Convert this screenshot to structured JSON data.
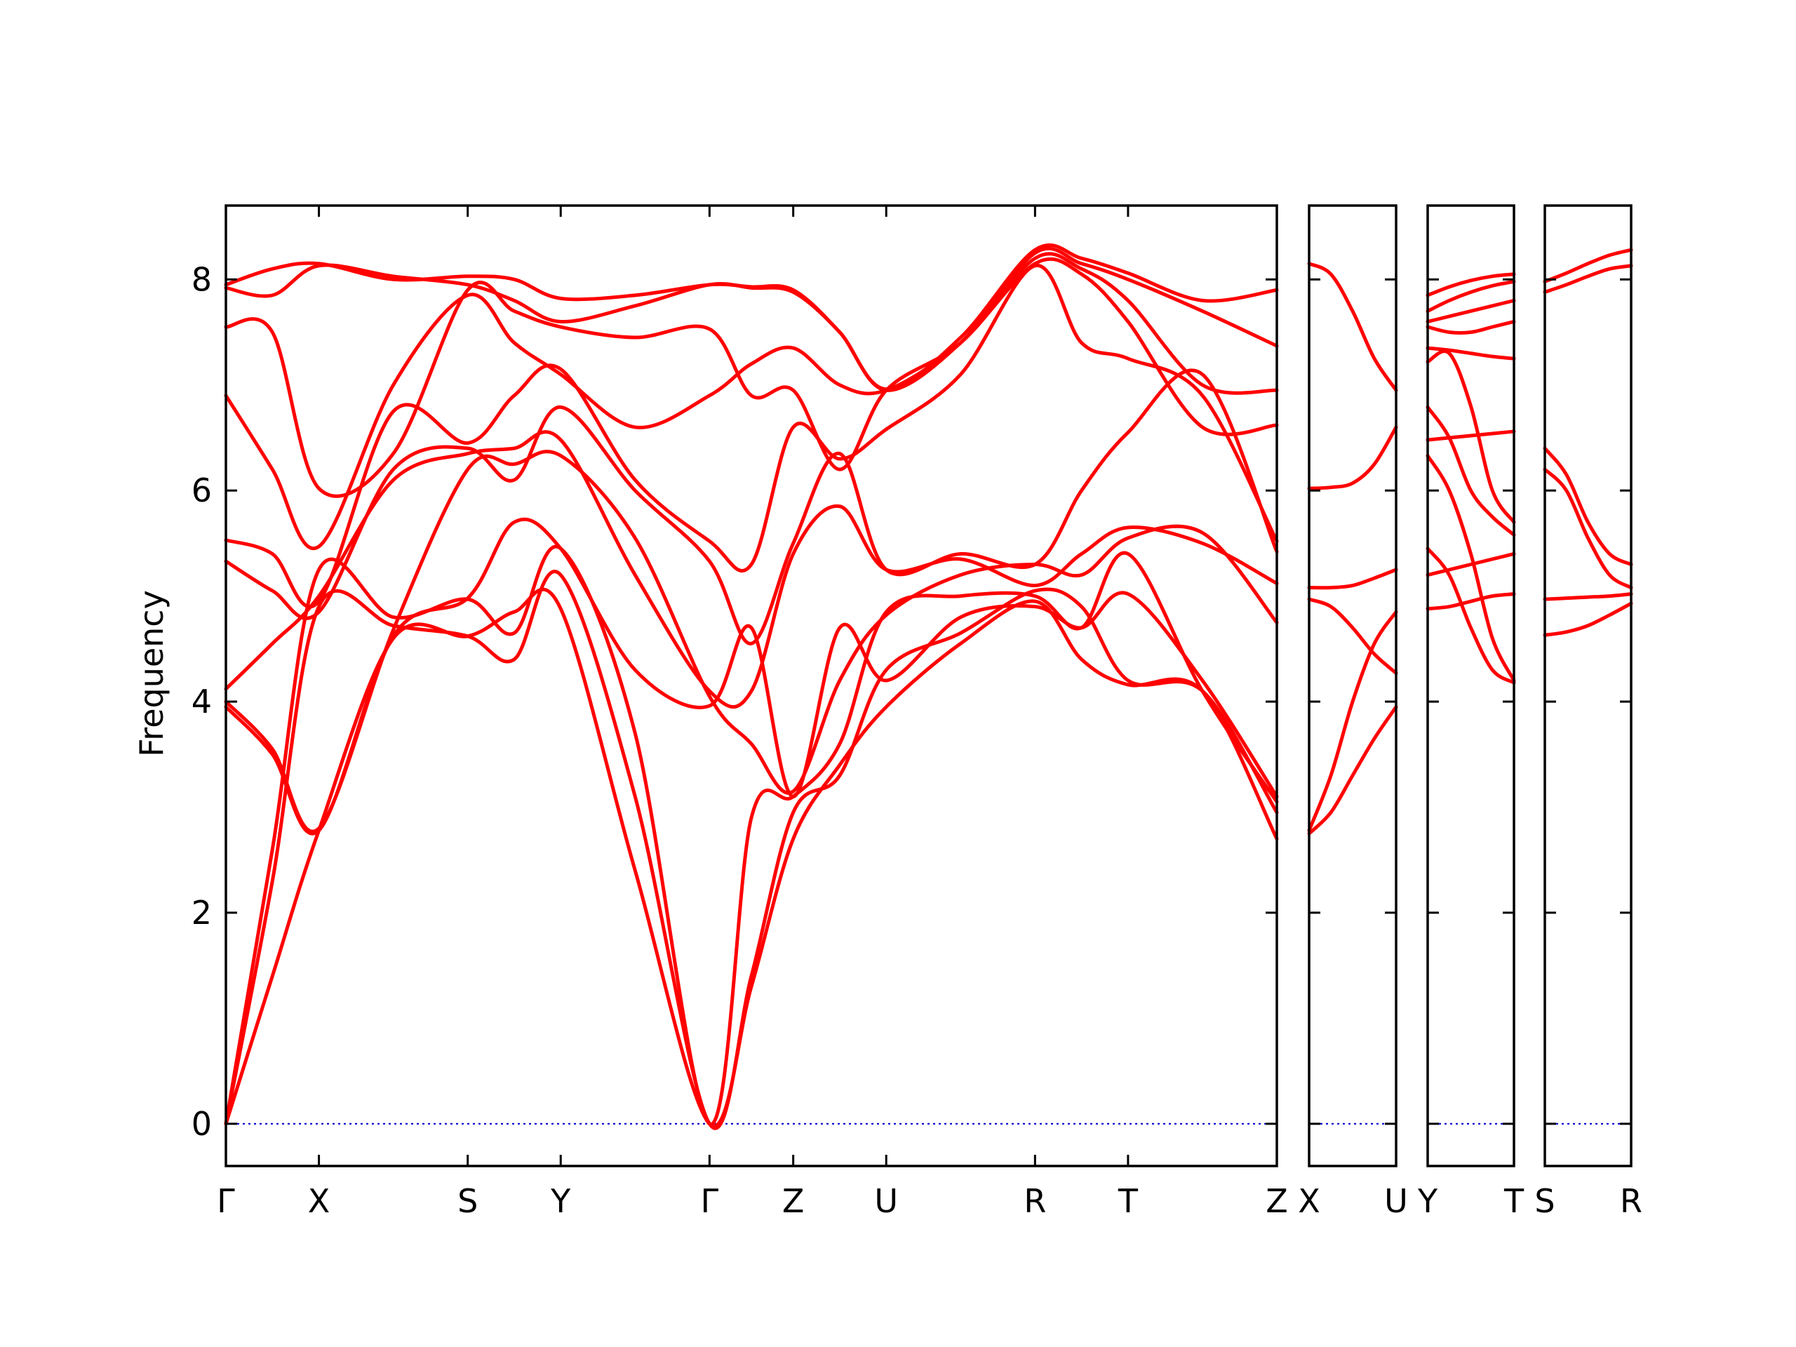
{
  "chart_data": {
    "type": "line",
    "title": "",
    "ylabel": "Frequency",
    "xlabel": "",
    "ylim": [
      -0.4,
      8.7
    ],
    "yticks": [
      0,
      2,
      4,
      6,
      8
    ],
    "ytick_labels": [
      "0",
      "2",
      "4",
      "6",
      "8"
    ],
    "grid": false,
    "legend": "none",
    "colors": {
      "bands": "#ff0000",
      "zero_line": "#0000cc",
      "axes": "#000000"
    },
    "panels": [
      {
        "name": "main",
        "xticks": [
          0,
          1,
          2.6,
          3.6,
          5.2,
          6.1,
          7.1,
          8.7,
          9.7,
          11.3
        ],
        "xtick_labels": [
          "Γ",
          "X",
          "S",
          "Y",
          "Γ",
          "Z",
          "U",
          "R",
          "T",
          "Z"
        ],
        "series": [
          {
            "name": "",
            "x": [
              0,
              0.5,
              1,
              1.8,
              2.6,
              3.1,
              3.6,
              4.4,
              5.2,
              5.65,
              6.1,
              6.6,
              7.1,
              7.9,
              8.7,
              9.2,
              9.7,
              10.5,
              11.3
            ],
            "y": [
              0,
              1.4,
              2.78,
              4.6,
              4.62,
              4.85,
              4.88,
              2.4,
              0,
              1.3,
              2.7,
              3.4,
              3.95,
              4.55,
              4.95,
              4.4,
              4.16,
              4.1,
              2.7
            ]
          },
          {
            "name": "",
            "x": [
              0,
              0.5,
              1,
              1.8,
              2.6,
              3.1,
              3.6,
              4.4,
              5.2,
              5.65,
              6.1,
              6.6,
              7.1,
              7.9,
              8.7,
              9.2,
              9.7,
              10.5,
              11.3
            ],
            "y": [
              0,
              2.3,
              4.9,
              4.72,
              4.62,
              4.4,
              5.2,
              3.1,
              0,
              1.4,
              2.95,
              3.3,
              4.3,
              4.65,
              5.05,
              4.9,
              4.2,
              4.1,
              2.95
            ]
          },
          {
            "name": "",
            "x": [
              0,
              0.5,
              1,
              1.8,
              2.6,
              3.1,
              3.6,
              4.4,
              5.2,
              5.65,
              6.1,
              6.6,
              7.1,
              7.9,
              8.7,
              9.2,
              9.7,
              10.5,
              11.3
            ],
            "y": [
              0,
              2.6,
              5.25,
              4.8,
              4.97,
              4.65,
              5.45,
              3.7,
              0,
              2.9,
              3.1,
              3.6,
              4.85,
              5.0,
              5.0,
              4.7,
              5.4,
              4.1,
              3.05
            ]
          },
          {
            "name": "",
            "x": [
              0,
              0.5,
              1,
              1.8,
              2.6,
              3.1,
              3.6,
              4.4,
              5.2,
              5.65,
              6.1,
              6.6,
              7.1,
              7.9,
              8.7,
              9.2,
              9.7,
              10.5,
              11.3
            ],
            "y": [
              3.95,
              3.5,
              2.78,
              4.62,
              4.98,
              5.7,
              5.45,
              4.3,
              3.96,
              4.7,
              3.1,
              4.7,
              4.2,
              4.8,
              4.9,
              4.7,
              5.02,
              4.2,
              3.1
            ]
          },
          {
            "name": "",
            "x": [
              0,
              0.5,
              1,
              1.8,
              2.6,
              3.1,
              3.6,
              4.4,
              5.2,
              5.65,
              6.1,
              6.6,
              7.1,
              7.9,
              8.7,
              9.2,
              9.7,
              10.5,
              11.3
            ],
            "y": [
              4.0,
              3.55,
              2.8,
              4.68,
              6.2,
              6.25,
              6.33,
              5.55,
              4.05,
              3.6,
              3.15,
              4.2,
              4.82,
              5.2,
              5.3,
              5.2,
              5.55,
              5.6,
              4.75
            ]
          },
          {
            "name": "",
            "x": [
              0,
              0.5,
              1,
              1.8,
              2.6,
              3.1,
              3.6,
              4.4,
              5.2,
              5.65,
              6.1,
              6.6,
              7.1,
              7.9,
              8.7,
              9.2,
              9.7,
              10.5,
              11.3
            ],
            "y": [
              4.12,
              4.55,
              5.0,
              6.1,
              6.35,
              6.4,
              6.48,
              5.2,
              4.1,
              4.1,
              5.4,
              5.85,
              5.25,
              5.35,
              5.1,
              5.4,
              5.65,
              5.5,
              5.12
            ]
          },
          {
            "name": "",
            "x": [
              0,
              0.5,
              1,
              1.8,
              2.6,
              3.1,
              3.6,
              4.4,
              5.2,
              5.65,
              6.1,
              6.6,
              7.1,
              7.9,
              8.7,
              9.2,
              9.7,
              10.5,
              11.3
            ],
            "y": [
              5.33,
              5.05,
              4.85,
              6.2,
              6.4,
              6.1,
              6.79,
              6.0,
              5.33,
              4.55,
              5.5,
              6.35,
              5.25,
              5.4,
              5.3,
              6.0,
              6.55,
              7.1,
              5.42
            ]
          },
          {
            "name": "",
            "x": [
              0,
              0.5,
              1,
              1.8,
              2.6,
              3.1,
              3.6,
              4.4,
              5.2,
              5.65,
              6.1,
              6.6,
              7.1,
              7.9,
              8.7,
              9.2,
              9.7,
              10.5,
              11.3
            ],
            "y": [
              5.53,
              5.4,
              4.95,
              6.75,
              6.45,
              6.9,
              7.15,
              6.1,
              5.52,
              5.3,
              6.6,
              6.3,
              6.58,
              7.1,
              8.13,
              7.4,
              7.25,
              6.9,
              5.52
            ]
          },
          {
            "name": "",
            "x": [
              0,
              0.5,
              1,
              1.8,
              2.6,
              3.1,
              3.6,
              4.4,
              5.2,
              5.65,
              6.1,
              6.6,
              7.1,
              7.9,
              8.7,
              9.2,
              9.7,
              10.5,
              11.3
            ],
            "y": [
              6.9,
              6.2,
              5.47,
              7.0,
              7.85,
              7.4,
              7.1,
              6.6,
              6.9,
              7.2,
              7.35,
              7.0,
              6.95,
              7.4,
              8.15,
              8.05,
              7.6,
              6.6,
              6.62
            ]
          },
          {
            "name": "",
            "x": [
              0,
              0.5,
              1,
              1.8,
              2.6,
              3.1,
              3.6,
              4.4,
              5.2,
              5.65,
              6.1,
              6.6,
              7.1,
              7.9,
              8.7,
              9.2,
              9.7,
              10.5,
              11.3
            ],
            "y": [
              7.55,
              7.5,
              6.02,
              6.35,
              7.9,
              7.7,
              7.55,
              7.45,
              7.53,
              6.9,
              6.95,
              6.2,
              6.95,
              7.4,
              8.2,
              8.1,
              7.8,
              7.0,
              6.95
            ]
          },
          {
            "name": "",
            "x": [
              0,
              0.5,
              1,
              1.8,
              2.6,
              3.1,
              3.6,
              4.4,
              5.2,
              5.65,
              6.1,
              6.6,
              7.1,
              7.9,
              8.7,
              9.2,
              9.7,
              10.5,
              11.3
            ],
            "y": [
              7.92,
              7.85,
              8.13,
              8.03,
              7.95,
              7.8,
              7.6,
              7.75,
              7.95,
              7.92,
              7.88,
              7.5,
              6.95,
              7.4,
              8.25,
              8.15,
              8.0,
              7.7,
              7.37
            ]
          },
          {
            "name": "",
            "x": [
              0,
              0.5,
              1,
              1.8,
              2.6,
              3.1,
              3.6,
              4.4,
              5.2,
              5.65,
              6.1,
              6.6,
              7.1,
              7.9,
              8.7,
              9.2,
              9.7,
              10.5,
              11.3
            ],
            "y": [
              7.95,
              8.1,
              8.15,
              8.0,
              8.03,
              8.0,
              7.82,
              7.85,
              7.95,
              7.93,
              7.9,
              7.5,
              6.96,
              7.45,
              8.28,
              8.2,
              8.06,
              7.8,
              7.9
            ]
          }
        ]
      },
      {
        "name": "X-U",
        "xticks": [
          0,
          1
        ],
        "xtick_labels": [
          "X",
          "U"
        ],
        "series": [
          {
            "name": "",
            "x": [
              0,
              0.25,
              0.5,
              0.75,
              1
            ],
            "y": [
              2.75,
              2.95,
              3.3,
              3.65,
              3.95
            ]
          },
          {
            "name": "",
            "x": [
              0,
              0.25,
              0.5,
              0.75,
              1
            ],
            "y": [
              2.78,
              3.3,
              4.0,
              4.55,
              4.85
            ]
          },
          {
            "name": "",
            "x": [
              0,
              0.25,
              0.5,
              0.75,
              1
            ],
            "y": [
              4.97,
              4.9,
              4.7,
              4.45,
              4.27
            ]
          },
          {
            "name": "",
            "x": [
              0,
              0.25,
              0.5,
              0.75,
              1
            ],
            "y": [
              5.08,
              5.08,
              5.1,
              5.17,
              5.25
            ]
          },
          {
            "name": "",
            "x": [
              0,
              0.25,
              0.5,
              0.75,
              1
            ],
            "y": [
              6.02,
              6.03,
              6.07,
              6.25,
              6.6
            ]
          },
          {
            "name": "",
            "x": [
              0,
              0.25,
              0.5,
              0.75,
              1
            ],
            "y": [
              8.15,
              8.05,
              7.7,
              7.25,
              6.95
            ]
          }
        ]
      },
      {
        "name": "Y-T",
        "xticks": [
          0,
          1
        ],
        "xtick_labels": [
          "Y",
          "T"
        ],
        "series": [
          {
            "name": "",
            "x": [
              0,
              0.25,
              0.5,
              0.75,
              1
            ],
            "y": [
              4.88,
              4.9,
              4.95,
              5.0,
              5.02
            ]
          },
          {
            "name": "",
            "x": [
              0,
              0.25,
              0.5,
              0.75,
              1
            ],
            "y": [
              5.2,
              5.25,
              5.3,
              5.35,
              5.4
            ]
          },
          {
            "name": "",
            "x": [
              0,
              0.25,
              0.5,
              0.75,
              1
            ],
            "y": [
              5.45,
              5.2,
              4.7,
              4.3,
              4.18
            ]
          },
          {
            "name": "",
            "x": [
              0,
              0.25,
              0.5,
              0.75,
              1
            ],
            "y": [
              6.33,
              6.0,
              5.4,
              4.6,
              4.2
            ]
          },
          {
            "name": "",
            "x": [
              0,
              0.25,
              0.5,
              0.75,
              1
            ],
            "y": [
              6.48,
              6.5,
              6.52,
              6.54,
              6.56
            ]
          },
          {
            "name": "",
            "x": [
              0,
              0.25,
              0.5,
              0.75,
              1
            ],
            "y": [
              6.79,
              6.5,
              6.0,
              5.75,
              5.58
            ]
          },
          {
            "name": "",
            "x": [
              0,
              0.25,
              0.5,
              0.75,
              1
            ],
            "y": [
              7.22,
              7.3,
              6.8,
              6.0,
              5.7
            ]
          },
          {
            "name": "",
            "x": [
              0,
              0.25,
              0.5,
              0.75,
              1
            ],
            "y": [
              7.35,
              7.33,
              7.3,
              7.27,
              7.25
            ]
          },
          {
            "name": "",
            "x": [
              0,
              0.25,
              0.5,
              0.75,
              1
            ],
            "y": [
              7.55,
              7.5,
              7.5,
              7.55,
              7.6
            ]
          },
          {
            "name": "",
            "x": [
              0,
              0.25,
              0.5,
              0.75,
              1
            ],
            "y": [
              7.6,
              7.65,
              7.7,
              7.75,
              7.8
            ]
          },
          {
            "name": "",
            "x": [
              0,
              0.25,
              0.5,
              0.75,
              1
            ],
            "y": [
              7.7,
              7.8,
              7.88,
              7.94,
              7.98
            ]
          },
          {
            "name": "",
            "x": [
              0,
              0.25,
              0.5,
              0.75,
              1
            ],
            "y": [
              7.85,
              7.93,
              7.99,
              8.03,
              8.05
            ]
          }
        ]
      },
      {
        "name": "S-R",
        "xticks": [
          0,
          1
        ],
        "xtick_labels": [
          "S",
          "R"
        ],
        "series": [
          {
            "name": "",
            "x": [
              0,
              0.25,
              0.5,
              0.75,
              1
            ],
            "y": [
              4.63,
              4.66,
              4.72,
              4.82,
              4.93
            ]
          },
          {
            "name": "",
            "x": [
              0,
              0.25,
              0.5,
              0.75,
              1
            ],
            "y": [
              4.97,
              4.98,
              4.99,
              5.0,
              5.02
            ]
          },
          {
            "name": "",
            "x": [
              0,
              0.25,
              0.5,
              0.75,
              1
            ],
            "y": [
              6.2,
              6.0,
              5.55,
              5.2,
              5.08
            ]
          },
          {
            "name": "",
            "x": [
              0,
              0.25,
              0.5,
              0.75,
              1
            ],
            "y": [
              6.4,
              6.15,
              5.7,
              5.4,
              5.3
            ]
          },
          {
            "name": "",
            "x": [
              0,
              0.25,
              0.5,
              0.75,
              1
            ],
            "y": [
              7.88,
              7.95,
              8.03,
              8.1,
              8.13
            ]
          },
          {
            "name": "",
            "x": [
              0,
              0.25,
              0.5,
              0.75,
              1
            ],
            "y": [
              7.98,
              8.06,
              8.15,
              8.23,
              8.28
            ]
          }
        ]
      }
    ]
  }
}
